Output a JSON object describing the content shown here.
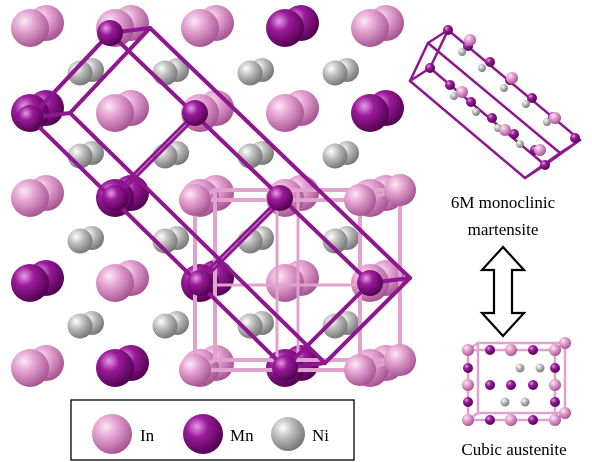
{
  "legend": {
    "items": [
      {
        "label": "In",
        "color": "#dc8cc4"
      },
      {
        "label": "Mn",
        "color": "#8b0d8b"
      },
      {
        "label": "Ni",
        "color": "#a8a8a8"
      }
    ]
  },
  "captions": {
    "martensite_line1": "6M monoclinic",
    "martensite_line2": "martensite",
    "austenite": "Cubic austenite"
  },
  "colors": {
    "in_atom": "#dc8cc4",
    "mn_atom": "#8b0d8b",
    "ni_atom": "#a8a8a8",
    "monoclinic_bond": "#8e168e",
    "cubic_bond": "#e0a3cf"
  }
}
